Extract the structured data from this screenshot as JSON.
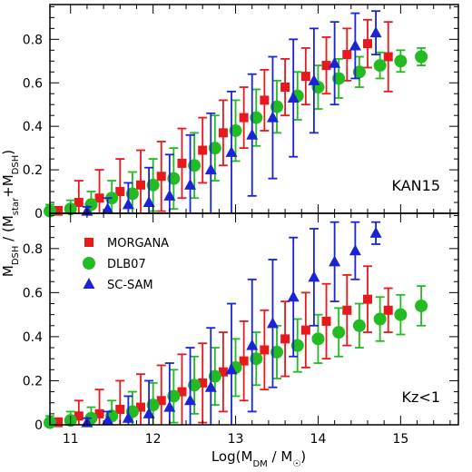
{
  "colors": {
    "morgana": "#e8191c",
    "dlb07": "#22bb22",
    "scsam": "#1a24d4",
    "axis": "#000000"
  },
  "figure": {
    "xlabel": "Log(M_DM / M_☉)",
    "ylabel": "M_DSH / (M_star+M_DSH)",
    "xticks": [
      "11",
      "12",
      "13",
      "14",
      "15"
    ],
    "yticks_top": [
      "0",
      "0.2",
      "0.4",
      "0.6",
      "0.8"
    ],
    "yticks_bottom": [
      "0",
      "0.2",
      "0.4",
      "0.6",
      "0.8"
    ]
  },
  "chart_data": [
    {
      "type": "scatter",
      "panel": "top",
      "label": "KAN15",
      "xlim": [
        10.75,
        15.7
      ],
      "ylim": [
        0,
        0.96
      ],
      "series": [
        {
          "name": "MORGANA",
          "marker": "square",
          "x": [
            10.85,
            11.1,
            11.35,
            11.6,
            11.85,
            12.1,
            12.35,
            12.6,
            12.85,
            13.1,
            13.35,
            13.6,
            13.85,
            14.1,
            14.35,
            14.6,
            14.85
          ],
          "y": [
            0.01,
            0.05,
            0.07,
            0.1,
            0.13,
            0.17,
            0.23,
            0.29,
            0.37,
            0.44,
            0.52,
            0.58,
            0.63,
            0.68,
            0.73,
            0.78,
            0.72
          ],
          "yerr": [
            0.02,
            0.1,
            0.13,
            0.15,
            0.16,
            0.16,
            0.16,
            0.15,
            0.15,
            0.14,
            0.14,
            0.13,
            0.13,
            0.13,
            0.12,
            0.11,
            0.16
          ]
        },
        {
          "name": "DLB07",
          "marker": "circle",
          "x": [
            10.75,
            11.0,
            11.25,
            11.5,
            11.75,
            12.0,
            12.25,
            12.5,
            12.75,
            13.0,
            13.25,
            13.5,
            13.75,
            14.0,
            14.25,
            14.5,
            14.75,
            15.0,
            15.25
          ],
          "y": [
            0.01,
            0.02,
            0.04,
            0.07,
            0.09,
            0.13,
            0.16,
            0.22,
            0.3,
            0.38,
            0.44,
            0.49,
            0.54,
            0.58,
            0.62,
            0.65,
            0.68,
            0.7,
            0.72
          ],
          "yerr": [
            0.03,
            0.04,
            0.06,
            0.08,
            0.1,
            0.12,
            0.14,
            0.15,
            0.15,
            0.14,
            0.13,
            0.12,
            0.11,
            0.1,
            0.09,
            0.07,
            0.06,
            0.05,
            0.04
          ]
        },
        {
          "name": "SC-SAM",
          "marker": "triangle",
          "x": [
            11.2,
            11.45,
            11.7,
            11.95,
            12.2,
            12.45,
            12.7,
            12.95,
            13.2,
            13.45,
            13.7,
            13.95,
            14.2,
            14.45,
            14.7
          ],
          "y": [
            0.01,
            0.02,
            0.04,
            0.05,
            0.08,
            0.13,
            0.2,
            0.28,
            0.36,
            0.44,
            0.53,
            0.61,
            0.69,
            0.77,
            0.83
          ],
          "yerr": [
            0.02,
            0.05,
            0.1,
            0.16,
            0.19,
            0.23,
            0.26,
            0.28,
            0.28,
            0.28,
            0.27,
            0.24,
            0.19,
            0.15,
            0.1
          ]
        }
      ]
    },
    {
      "type": "scatter",
      "panel": "bottom",
      "label": "Kz<1",
      "legend": "upper-left",
      "xlim": [
        10.75,
        15.7
      ],
      "ylim": [
        0,
        0.96
      ],
      "series": [
        {
          "name": "MORGANA",
          "marker": "square",
          "x": [
            10.85,
            11.1,
            11.35,
            11.6,
            11.85,
            12.1,
            12.35,
            12.6,
            12.85,
            13.1,
            13.35,
            13.6,
            13.85,
            14.1,
            14.35,
            14.6,
            14.85
          ],
          "y": [
            0.01,
            0.04,
            0.05,
            0.07,
            0.08,
            0.11,
            0.15,
            0.19,
            0.24,
            0.29,
            0.34,
            0.39,
            0.43,
            0.47,
            0.52,
            0.57,
            0.52
          ],
          "yerr": [
            0.02,
            0.07,
            0.11,
            0.13,
            0.15,
            0.16,
            0.17,
            0.18,
            0.18,
            0.18,
            0.18,
            0.17,
            0.17,
            0.17,
            0.16,
            0.15,
            0.1
          ]
        },
        {
          "name": "DLB07",
          "marker": "circle",
          "x": [
            10.75,
            11.0,
            11.25,
            11.5,
            11.75,
            12.0,
            12.25,
            12.5,
            12.75,
            13.0,
            13.25,
            13.5,
            13.75,
            14.0,
            14.25,
            14.5,
            14.75,
            15.0,
            15.25
          ],
          "y": [
            0.01,
            0.02,
            0.03,
            0.04,
            0.06,
            0.09,
            0.13,
            0.18,
            0.22,
            0.26,
            0.3,
            0.33,
            0.36,
            0.39,
            0.42,
            0.45,
            0.48,
            0.5,
            0.54
          ],
          "yerr": [
            0.03,
            0.04,
            0.05,
            0.07,
            0.09,
            0.1,
            0.12,
            0.13,
            0.13,
            0.13,
            0.12,
            0.12,
            0.12,
            0.11,
            0.11,
            0.1,
            0.1,
            0.09,
            0.09
          ]
        },
        {
          "name": "SC-SAM",
          "marker": "triangle",
          "x": [
            11.2,
            11.45,
            11.7,
            11.95,
            12.2,
            12.45,
            12.7,
            12.95,
            13.2,
            13.45,
            13.7,
            13.95,
            14.2,
            14.45,
            14.7
          ],
          "y": [
            0.01,
            0.02,
            0.03,
            0.05,
            0.08,
            0.11,
            0.17,
            0.25,
            0.36,
            0.46,
            0.58,
            0.67,
            0.74,
            0.79,
            0.87
          ],
          "yerr": [
            0.02,
            0.04,
            0.1,
            0.15,
            0.2,
            0.24,
            0.27,
            0.3,
            0.3,
            0.29,
            0.27,
            0.22,
            0.18,
            0.13,
            0.05
          ]
        }
      ]
    }
  ]
}
